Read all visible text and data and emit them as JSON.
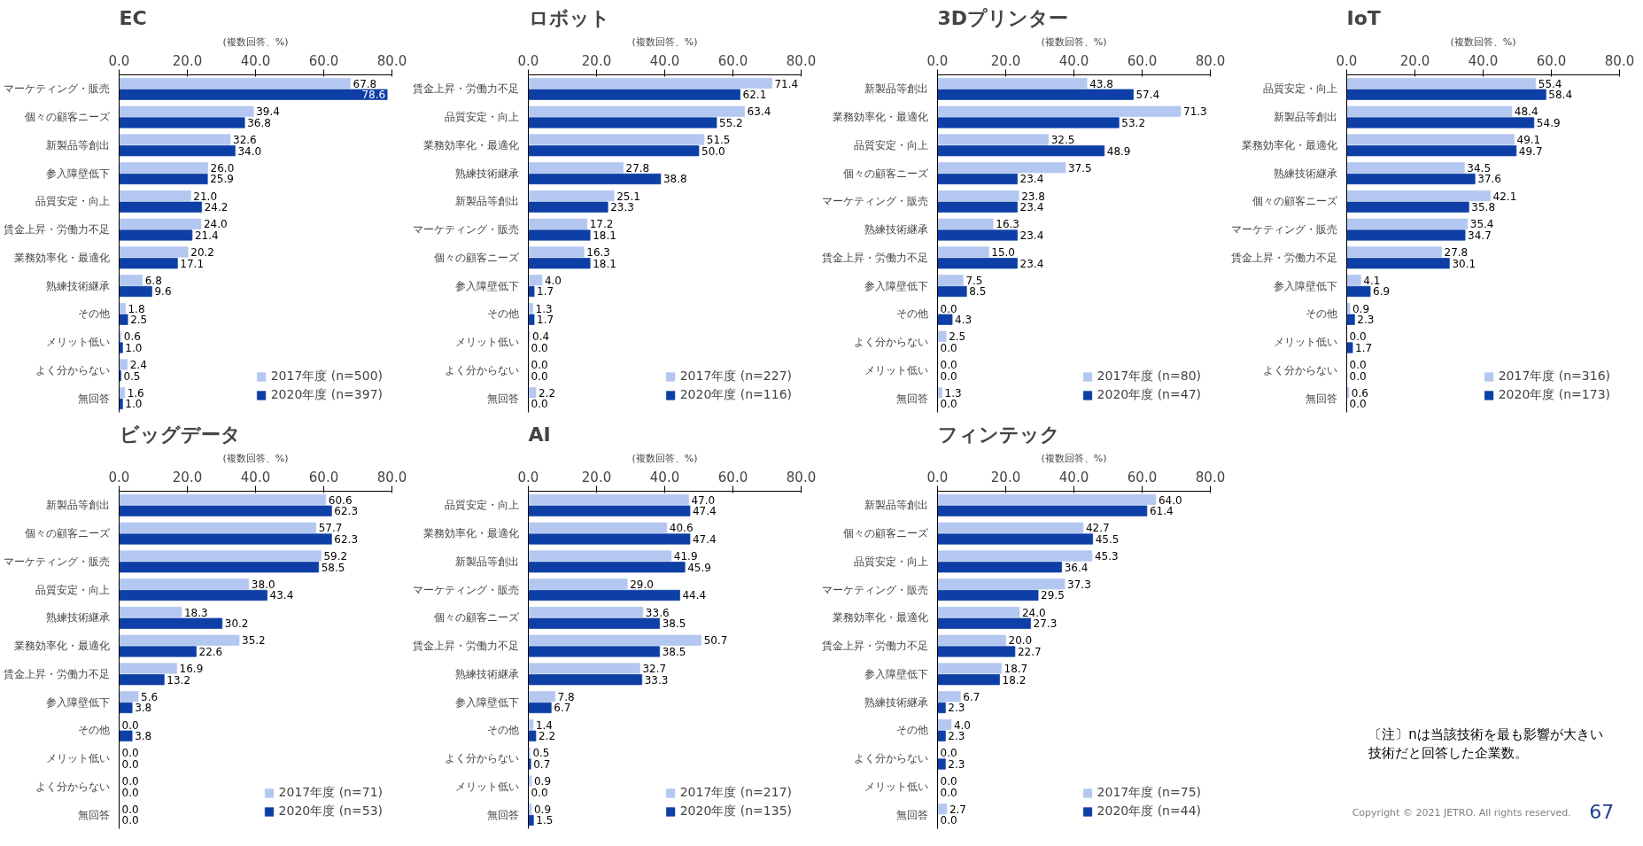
{
  "chart_data": [
    {
      "type": "bar",
      "orientation": "horizontal",
      "title": "EC",
      "data_labels": true,
      "xlabel": "(複数回答、%)",
      "xlim": [
        0,
        80
      ],
      "xticks": [
        {
          "value": 0,
          "label": "0.0"
        },
        {
          "value": 20,
          "label": "20.0"
        },
        {
          "value": 40,
          "label": "40.0"
        },
        {
          "value": 60,
          "label": "60.0"
        },
        {
          "value": 80,
          "label": "80.0"
        }
      ],
      "legend": "bottom right",
      "categories": [
        "マーケティング・販売",
        "個々の顧客ニーズ",
        "新製品等創出",
        "参入障壁低下",
        "品質安定・向上",
        "賃金上昇・労働力不足",
        "業務効率化・最適化",
        "熟練技術継承",
        "その他",
        "メリット低い",
        "よく分からない",
        "無回答"
      ],
      "series": [
        {
          "name": "2017年度 (n=500)",
          "color": "#b4c7f0",
          "values": [
            67.8,
            39.4,
            32.6,
            26.0,
            21.0,
            24.0,
            20.2,
            6.8,
            1.8,
            0.6,
            2.4,
            1.6
          ],
          "value_labels": [
            "67.8",
            "39.4",
            "32.6",
            "26.0",
            "21.0",
            "24.0",
            "20.2",
            "6.8",
            "1.8",
            "0.6",
            "2.4",
            "1.6"
          ]
        },
        {
          "name": "2020年度 (n=397)",
          "color": "#0d3fa6",
          "values": [
            78.6,
            36.8,
            34.0,
            25.9,
            24.2,
            21.4,
            17.1,
            9.6,
            2.5,
            1.0,
            0.5,
            1.0
          ],
          "value_labels": [
            "78.6",
            "36.8",
            "34.0",
            "25.9",
            "24.2",
            "21.4",
            "17.1",
            "9.6",
            "2.5",
            "1.0",
            "0.5",
            "1.0"
          ]
        }
      ]
    },
    {
      "type": "bar",
      "orientation": "horizontal",
      "title": "ロボット",
      "data_labels": true,
      "xlabel": "(複数回答、%)",
      "xlim": [
        0,
        80
      ],
      "xticks": [
        {
          "value": 0,
          "label": "0.0"
        },
        {
          "value": 20,
          "label": "20.0"
        },
        {
          "value": 40,
          "label": "40.0"
        },
        {
          "value": 60,
          "label": "60.0"
        },
        {
          "value": 80,
          "label": "80.0"
        }
      ],
      "legend": "bottom right",
      "categories": [
        "賃金上昇・労働力不足",
        "品質安定・向上",
        "業務効率化・最適化",
        "熟練技術継承",
        "新製品等創出",
        "マーケティング・販売",
        "個々の顧客ニーズ",
        "参入障壁低下",
        "その他",
        "メリット低い",
        "よく分からない",
        "無回答"
      ],
      "series": [
        {
          "name": "2017年度 (n=227)",
          "color": "#b4c7f0",
          "values": [
            71.4,
            63.4,
            51.5,
            27.8,
            25.1,
            17.2,
            16.3,
            4.0,
            1.3,
            0.4,
            0.0,
            2.2
          ],
          "value_labels": [
            "71.4",
            "63.4",
            "51.5",
            "27.8",
            "25.1",
            "17.2",
            "16.3",
            "4.0",
            "1.3",
            "0.4",
            "0.0",
            "2.2"
          ]
        },
        {
          "name": "2020年度 (n=116)",
          "color": "#0d3fa6",
          "values": [
            62.1,
            55.2,
            50.0,
            38.8,
            23.3,
            18.1,
            18.1,
            1.7,
            1.7,
            0.0,
            0.0,
            0.0
          ],
          "value_labels": [
            "62.1",
            "55.2",
            "50.0",
            "38.8",
            "23.3",
            "18.1",
            "18.1",
            "1.7",
            "1.7",
            "0.0",
            "0.0",
            "0.0"
          ]
        }
      ]
    },
    {
      "type": "bar",
      "orientation": "horizontal",
      "title": "3Dプリンター",
      "data_labels": true,
      "xlabel": "(複数回答、%)",
      "xlim": [
        0,
        80
      ],
      "xticks": [
        {
          "value": 0,
          "label": "0.0"
        },
        {
          "value": 20,
          "label": "20.0"
        },
        {
          "value": 40,
          "label": "40.0"
        },
        {
          "value": 60,
          "label": "60.0"
        },
        {
          "value": 80,
          "label": "80.0"
        }
      ],
      "legend": "bottom right",
      "categories": [
        "新製品等創出",
        "業務効率化・最適化",
        "品質安定・向上",
        "個々の顧客ニーズ",
        "マーケティング・販売",
        "熟練技術継承",
        "賃金上昇・労働力不足",
        "参入障壁低下",
        "その他",
        "よく分からない",
        "メリット低い",
        "無回答"
      ],
      "series": [
        {
          "name": "2017年度 (n=80)",
          "color": "#b4c7f0",
          "values": [
            43.8,
            71.3,
            32.5,
            37.5,
            23.8,
            16.3,
            15.0,
            7.5,
            0.0,
            2.5,
            0.0,
            1.3
          ],
          "value_labels": [
            "43.8",
            "71.3",
            "32.5",
            "37.5",
            "23.8",
            "16.3",
            "15.0",
            "7.5",
            "0.0",
            "2.5",
            "0.0",
            "1.3"
          ]
        },
        {
          "name": "2020年度 (n=47)",
          "color": "#0d3fa6",
          "values": [
            57.4,
            53.2,
            48.9,
            23.4,
            23.4,
            23.4,
            23.4,
            8.5,
            4.3,
            0.0,
            0.0,
            0.0
          ],
          "value_labels": [
            "57.4",
            "53.2",
            "48.9",
            "23.4",
            "23.4",
            "23.4",
            "23.4",
            "8.5",
            "4.3",
            "0.0",
            "0.0",
            "0.0"
          ]
        }
      ]
    },
    {
      "type": "bar",
      "orientation": "horizontal",
      "title": "IoT",
      "data_labels": true,
      "xlabel": "(複数回答、%)",
      "xlim": [
        0,
        80
      ],
      "xticks": [
        {
          "value": 0,
          "label": "0.0"
        },
        {
          "value": 20,
          "label": "20.0"
        },
        {
          "value": 40,
          "label": "40.0"
        },
        {
          "value": 60,
          "label": "60.0"
        },
        {
          "value": 80,
          "label": "80.0"
        }
      ],
      "legend": "bottom right",
      "categories": [
        "品質安定・向上",
        "新製品等創出",
        "業務効率化・最適化",
        "熟練技術継承",
        "個々の顧客ニーズ",
        "マーケティング・販売",
        "賃金上昇・労働力不足",
        "参入障壁低下",
        "その他",
        "メリット低い",
        "よく分からない",
        "無回答"
      ],
      "series": [
        {
          "name": "2017年度 (n=316)",
          "color": "#b4c7f0",
          "values": [
            55.4,
            48.4,
            49.1,
            34.5,
            42.1,
            35.4,
            27.8,
            4.1,
            0.9,
            0.0,
            0.0,
            0.6
          ],
          "value_labels": [
            "55.4",
            "48.4",
            "49.1",
            "34.5",
            "42.1",
            "35.4",
            "27.8",
            "4.1",
            "0.9",
            "0.0",
            "0.0",
            "0.6"
          ]
        },
        {
          "name": "2020年度 (n=173)",
          "color": "#0d3fa6",
          "values": [
            58.4,
            54.9,
            49.7,
            37.6,
            35.8,
            34.7,
            30.1,
            6.9,
            2.3,
            1.7,
            0.0,
            0.0
          ],
          "value_labels": [
            "58.4",
            "54.9",
            "49.7",
            "37.6",
            "35.8",
            "34.7",
            "30.1",
            "6.9",
            "2.3",
            "1.7",
            "0.0",
            "0.0"
          ]
        }
      ]
    },
    {
      "type": "bar",
      "orientation": "horizontal",
      "title": "ビッグデータ",
      "data_labels": true,
      "xlabel": "(複数回答、%)",
      "xlim": [
        0,
        80
      ],
      "xticks": [
        {
          "value": 0,
          "label": "0.0"
        },
        {
          "value": 20,
          "label": "20.0"
        },
        {
          "value": 40,
          "label": "40.0"
        },
        {
          "value": 60,
          "label": "60.0"
        },
        {
          "value": 80,
          "label": "80.0"
        }
      ],
      "legend": "bottom right",
      "categories": [
        "新製品等創出",
        "個々の顧客ニーズ",
        "マーケティング・販売",
        "品質安定・向上",
        "熟練技術継承",
        "業務効率化・最適化",
        "賃金上昇・労働力不足",
        "参入障壁低下",
        "その他",
        "メリット低い",
        "よく分からない",
        "無回答"
      ],
      "series": [
        {
          "name": "2017年度 (n=71)",
          "color": "#b4c7f0",
          "values": [
            60.6,
            57.7,
            59.2,
            38.0,
            18.3,
            35.2,
            16.9,
            5.6,
            0.0,
            0.0,
            0.0,
            0.0
          ],
          "value_labels": [
            "60.6",
            "57.7",
            "59.2",
            "38.0",
            "18.3",
            "35.2",
            "16.9",
            "5.6",
            "0.0",
            "0.0",
            "0.0",
            "0.0"
          ]
        },
        {
          "name": "2020年度 (n=53)",
          "color": "#0d3fa6",
          "values": [
            62.3,
            62.3,
            58.5,
            43.4,
            30.2,
            22.6,
            13.2,
            3.8,
            3.8,
            0.0,
            0.0,
            0.0
          ],
          "value_labels": [
            "62.3",
            "62.3",
            "58.5",
            "43.4",
            "30.2",
            "22.6",
            "13.2",
            "3.8",
            "3.8",
            "0.0",
            "0.0",
            "0.0"
          ]
        }
      ]
    },
    {
      "type": "bar",
      "orientation": "horizontal",
      "title": "AI",
      "data_labels": true,
      "xlabel": "(複数回答、%)",
      "xlim": [
        0,
        80
      ],
      "xticks": [
        {
          "value": 0,
          "label": "0.0"
        },
        {
          "value": 20,
          "label": "20.0"
        },
        {
          "value": 40,
          "label": "40.0"
        },
        {
          "value": 60,
          "label": "60.0"
        },
        {
          "value": 80,
          "label": "80.0"
        }
      ],
      "legend": "bottom right",
      "categories": [
        "品質安定・向上",
        "業務効率化・最適化",
        "新製品等創出",
        "マーケティング・販売",
        "個々の顧客ニーズ",
        "賃金上昇・労働力不足",
        "熟練技術継承",
        "参入障壁低下",
        "その他",
        "よく分からない",
        "メリット低い",
        "無回答"
      ],
      "series": [
        {
          "name": "2017年度 (n=217)",
          "color": "#b4c7f0",
          "values": [
            47.0,
            40.6,
            41.9,
            29.0,
            33.6,
            50.7,
            32.7,
            7.8,
            1.4,
            0.5,
            0.9,
            0.9
          ],
          "value_labels": [
            "47.0",
            "40.6",
            "41.9",
            "29.0",
            "33.6",
            "50.7",
            "32.7",
            "7.8",
            "1.4",
            "0.5",
            "0.9",
            "0.9"
          ]
        },
        {
          "name": "2020年度 (n=135)",
          "color": "#0d3fa6",
          "values": [
            47.4,
            47.4,
            45.9,
            44.4,
            38.5,
            38.5,
            33.3,
            6.7,
            2.2,
            0.7,
            0.0,
            1.5
          ],
          "value_labels": [
            "47.4",
            "47.4",
            "45.9",
            "44.4",
            "38.5",
            "38.5",
            "33.3",
            "6.7",
            "2.2",
            "0.7",
            "0.0",
            "1.5"
          ]
        }
      ]
    },
    {
      "type": "bar",
      "orientation": "horizontal",
      "title": "フィンテック",
      "data_labels": true,
      "xlabel": "(複数回答、%)",
      "xlim": [
        0,
        80
      ],
      "xticks": [
        {
          "value": 0,
          "label": "0.0"
        },
        {
          "value": 20,
          "label": "20.0"
        },
        {
          "value": 40,
          "label": "40.0"
        },
        {
          "value": 60,
          "label": "60.0"
        },
        {
          "value": 80,
          "label": "80.0"
        }
      ],
      "legend": "bottom right",
      "categories": [
        "新製品等創出",
        "個々の顧客ニーズ",
        "品質安定・向上",
        "マーケティング・販売",
        "業務効率化・最適化",
        "賃金上昇・労働力不足",
        "参入障壁低下",
        "熟練技術継承",
        "その他",
        "よく分からない",
        "メリット低い",
        "無回答"
      ],
      "series": [
        {
          "name": "2017年度 (n=75)",
          "color": "#b4c7f0",
          "values": [
            64.0,
            42.7,
            45.3,
            37.3,
            24.0,
            20.0,
            18.7,
            6.7,
            4.0,
            0.0,
            0.0,
            2.7
          ],
          "value_labels": [
            "64.0",
            "42.7",
            "45.3",
            "37.3",
            "24.0",
            "20.0",
            "18.7",
            "6.7",
            "4.0",
            "0.0",
            "0.0",
            "2.7"
          ]
        },
        {
          "name": "2020年度 (n=44)",
          "color": "#0d3fa6",
          "values": [
            61.4,
            45.5,
            36.4,
            29.5,
            27.3,
            22.7,
            18.2,
            2.3,
            2.3,
            2.3,
            0.0,
            0.0
          ],
          "value_labels": [
            "61.4",
            "45.5",
            "36.4",
            "29.5",
            "27.3",
            "22.7",
            "18.2",
            "2.3",
            "2.3",
            "2.3",
            "0.0",
            "0.0"
          ]
        }
      ]
    },
    {
      "type": "other",
      "annotations": [
        "〔注〕nは当該技術を最も影響が大きい技術だと回答した企業数。",
        "Copyright © 2021 JETRO. All rights reserved.",
        "67"
      ]
    }
  ]
}
